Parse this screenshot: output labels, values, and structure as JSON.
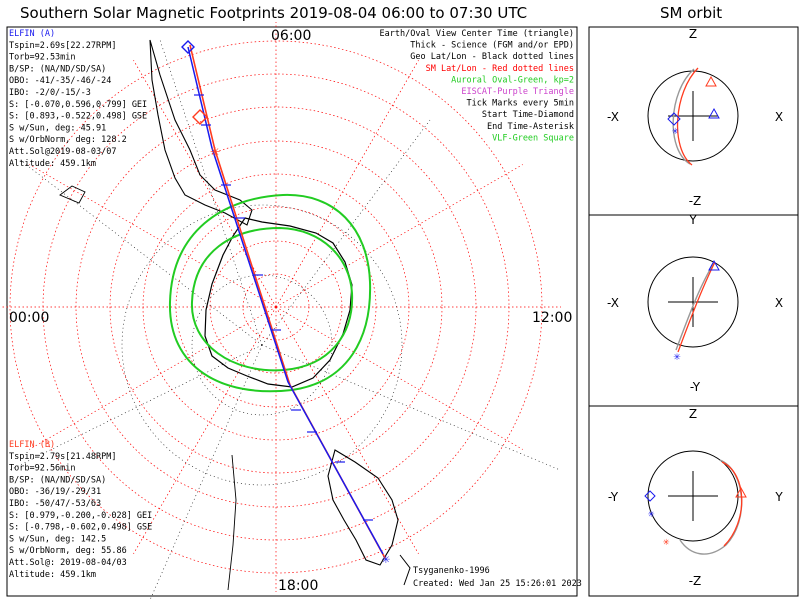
{
  "title": "Southern Solar Magnetic Footprints 2019-08-04 06:00 to 07:30 UTC",
  "orbit_title": "SM orbit",
  "clock_labels": {
    "top": "06:00",
    "left": "00:00",
    "right": "12:00",
    "bottom": "18:00"
  },
  "legend": [
    {
      "text": "Earth/Oval View Center Time (triangle)",
      "color": "#000000"
    },
    {
      "text": "Thick - Science (FGM and/or EPD)",
      "color": "#000000"
    },
    {
      "text": "Geo Lat/Lon - Black dotted lines",
      "color": "#000000"
    },
    {
      "text": "SM Lat/Lon - Red dotted lines",
      "color": "#ff0000"
    },
    {
      "text": "Auroral Oval-Green, kp=2",
      "color": "#22cc22"
    },
    {
      "text": "EISCAT-Purple Triangle",
      "color": "#cc44cc"
    },
    {
      "text": "Tick Marks every 5min",
      "color": "#000000"
    },
    {
      "text": "Start Time-Diamond",
      "color": "#000000"
    },
    {
      "text": "End Time-Asterisk",
      "color": "#000000"
    },
    {
      "text": "VLF-Green Square",
      "color": "#22cc22"
    }
  ],
  "elfin_a": {
    "color": "#1a1aee",
    "lines": [
      "ELFIN (A)",
      "Tspin=2.69s[22.27RPM]",
      "Torb=92.53min",
      "B/SP: (NA/ND/SD/SA)",
      "OBO: -41/-35/-46/-24",
      "IBO: -2/0/-15/-3",
      "S: [-0.070,0.596,0.799] GEI",
      "S: [0.893,-0.522,0.498] GSE",
      "S w/Sun, deg: 45.91",
      "S w/OrbNorm, deg: 128.2",
      "Att.Sol@2019-08-03/07",
      "Altitude: 459.1km"
    ]
  },
  "elfin_b": {
    "color": "#ff3b1f",
    "lines": [
      "ELFIN (B)",
      "Tspin=2.79s[21.48RPM]",
      "Torb=92.56min",
      "B/SP: (NA/ND/SD/SA)",
      "OBO: -36/19/-29/31",
      "IBO: -50/47/-53/63",
      "S: [0.979,-0.200,-0.028] GEI",
      "S: [-0.798,-0.602,0.498] GSE",
      "S w/Sun, deg: 142.5",
      "S w/OrbNorm, deg: 55.86",
      "Att.Sol@: 2019-08-04/03",
      "Altitude: 459.1km"
    ]
  },
  "footer": {
    "model": "Tsyganenko-1996",
    "created": "Created: Wed Jan 25 15:26:01 2023"
  },
  "orbit_panels": [
    {
      "top": "Z",
      "bottom": "-Z",
      "left": "-X",
      "right": "X"
    },
    {
      "top": "Y",
      "bottom": "-Y",
      "left": "-X",
      "right": "X"
    },
    {
      "top": "Z",
      "bottom": "-Z",
      "left": "-Y",
      "right": "Y"
    }
  ],
  "colors": {
    "a": "#1a1aee",
    "b": "#ff3b1f",
    "sm_grid": "#ff0000",
    "oval": "#22cc22",
    "geo_grid": "#000000"
  },
  "chart_data": {
    "type": "polar map",
    "projection": "southern hemisphere, solar magnetic, center = south magnetic pole",
    "tick_interval_min": 5,
    "series": [
      {
        "name": "ELFIN (A)",
        "start_marker": "diamond",
        "end_marker": "asterisk"
      },
      {
        "name": "ELFIN (B)",
        "start_marker": "diamond",
        "end_marker": "asterisk"
      }
    ]
  }
}
